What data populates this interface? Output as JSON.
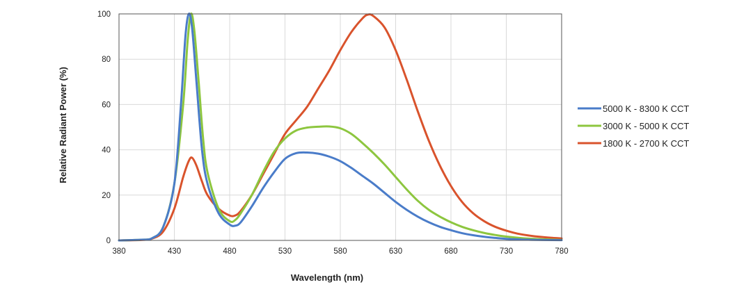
{
  "chart_data": {
    "type": "line",
    "xlabel": "Wavelength (nm)",
    "ylabel": "Relative Radiant Power (%)",
    "xlim": [
      380,
      780
    ],
    "ylim": [
      0,
      100
    ],
    "x_ticks": [
      380,
      430,
      480,
      530,
      580,
      630,
      680,
      730,
      780
    ],
    "y_ticks": [
      0,
      20,
      40,
      60,
      80,
      100
    ],
    "grid": true,
    "legend_position": "right",
    "series": [
      {
        "name": "5000 K - 8300 K CCT",
        "color": "#4a7cc9",
        "points": [
          [
            380,
            0
          ],
          [
            400,
            0.3
          ],
          [
            410,
            1
          ],
          [
            420,
            6
          ],
          [
            430,
            25
          ],
          [
            436,
            60
          ],
          [
            440,
            90
          ],
          [
            443,
            100
          ],
          [
            446,
            94
          ],
          [
            450,
            70
          ],
          [
            455,
            40
          ],
          [
            460,
            25
          ],
          [
            470,
            12
          ],
          [
            480,
            7
          ],
          [
            485,
            6.5
          ],
          [
            490,
            8
          ],
          [
            500,
            15
          ],
          [
            510,
            23
          ],
          [
            520,
            30
          ],
          [
            530,
            36
          ],
          [
            540,
            38.5
          ],
          [
            550,
            38.8
          ],
          [
            560,
            38.3
          ],
          [
            570,
            37
          ],
          [
            580,
            35
          ],
          [
            590,
            32
          ],
          [
            600,
            28.5
          ],
          [
            610,
            25
          ],
          [
            620,
            21
          ],
          [
            630,
            17
          ],
          [
            640,
            13.5
          ],
          [
            650,
            10.5
          ],
          [
            660,
            8
          ],
          [
            670,
            6
          ],
          [
            680,
            4.5
          ],
          [
            690,
            3.2
          ],
          [
            700,
            2.3
          ],
          [
            710,
            1.6
          ],
          [
            720,
            1.1
          ],
          [
            730,
            0.7
          ],
          [
            750,
            0.3
          ],
          [
            780,
            0.1
          ]
        ]
      },
      {
        "name": "3000 K - 5000 K CCT",
        "color": "#8dc63f",
        "points": [
          [
            380,
            0
          ],
          [
            400,
            0.3
          ],
          [
            410,
            1
          ],
          [
            420,
            6
          ],
          [
            430,
            25
          ],
          [
            438,
            60
          ],
          [
            442,
            88
          ],
          [
            445,
            100
          ],
          [
            448,
            93
          ],
          [
            452,
            70
          ],
          [
            456,
            45
          ],
          [
            460,
            30
          ],
          [
            470,
            14
          ],
          [
            480,
            8.5
          ],
          [
            485,
            9
          ],
          [
            490,
            12
          ],
          [
            500,
            20
          ],
          [
            510,
            30
          ],
          [
            520,
            39
          ],
          [
            530,
            45
          ],
          [
            540,
            48.5
          ],
          [
            550,
            49.8
          ],
          [
            560,
            50.2
          ],
          [
            570,
            50.3
          ],
          [
            580,
            49.5
          ],
          [
            590,
            47
          ],
          [
            600,
            43
          ],
          [
            610,
            38.5
          ],
          [
            620,
            33.5
          ],
          [
            630,
            28
          ],
          [
            640,
            22.5
          ],
          [
            650,
            17.5
          ],
          [
            660,
            13.5
          ],
          [
            670,
            10.5
          ],
          [
            680,
            8
          ],
          [
            690,
            6
          ],
          [
            700,
            4.5
          ],
          [
            710,
            3.3
          ],
          [
            720,
            2.4
          ],
          [
            730,
            1.7
          ],
          [
            750,
            0.8
          ],
          [
            780,
            0.2
          ]
        ]
      },
      {
        "name": "1800 K - 2700 K CCT",
        "color": "#d9532c",
        "points": [
          [
            380,
            0
          ],
          [
            400,
            0.2
          ],
          [
            410,
            0.8
          ],
          [
            420,
            4
          ],
          [
            430,
            14
          ],
          [
            438,
            28
          ],
          [
            443,
            35
          ],
          [
            446,
            36.5
          ],
          [
            450,
            33
          ],
          [
            455,
            26
          ],
          [
            460,
            20
          ],
          [
            470,
            14
          ],
          [
            480,
            11
          ],
          [
            485,
            11
          ],
          [
            490,
            13
          ],
          [
            500,
            20
          ],
          [
            510,
            29
          ],
          [
            520,
            38
          ],
          [
            530,
            47
          ],
          [
            540,
            53
          ],
          [
            550,
            59
          ],
          [
            560,
            67
          ],
          [
            570,
            75
          ],
          [
            580,
            84
          ],
          [
            590,
            92
          ],
          [
            600,
            98
          ],
          [
            605,
            99.7
          ],
          [
            610,
            99
          ],
          [
            620,
            94
          ],
          [
            630,
            84
          ],
          [
            640,
            71
          ],
          [
            650,
            57
          ],
          [
            660,
            44
          ],
          [
            670,
            33
          ],
          [
            680,
            24
          ],
          [
            690,
            17
          ],
          [
            700,
            12
          ],
          [
            710,
            8.5
          ],
          [
            720,
            6
          ],
          [
            730,
            4.3
          ],
          [
            740,
            3
          ],
          [
            750,
            2.2
          ],
          [
            760,
            1.6
          ],
          [
            770,
            1.2
          ],
          [
            780,
            0.9
          ]
        ]
      }
    ]
  }
}
